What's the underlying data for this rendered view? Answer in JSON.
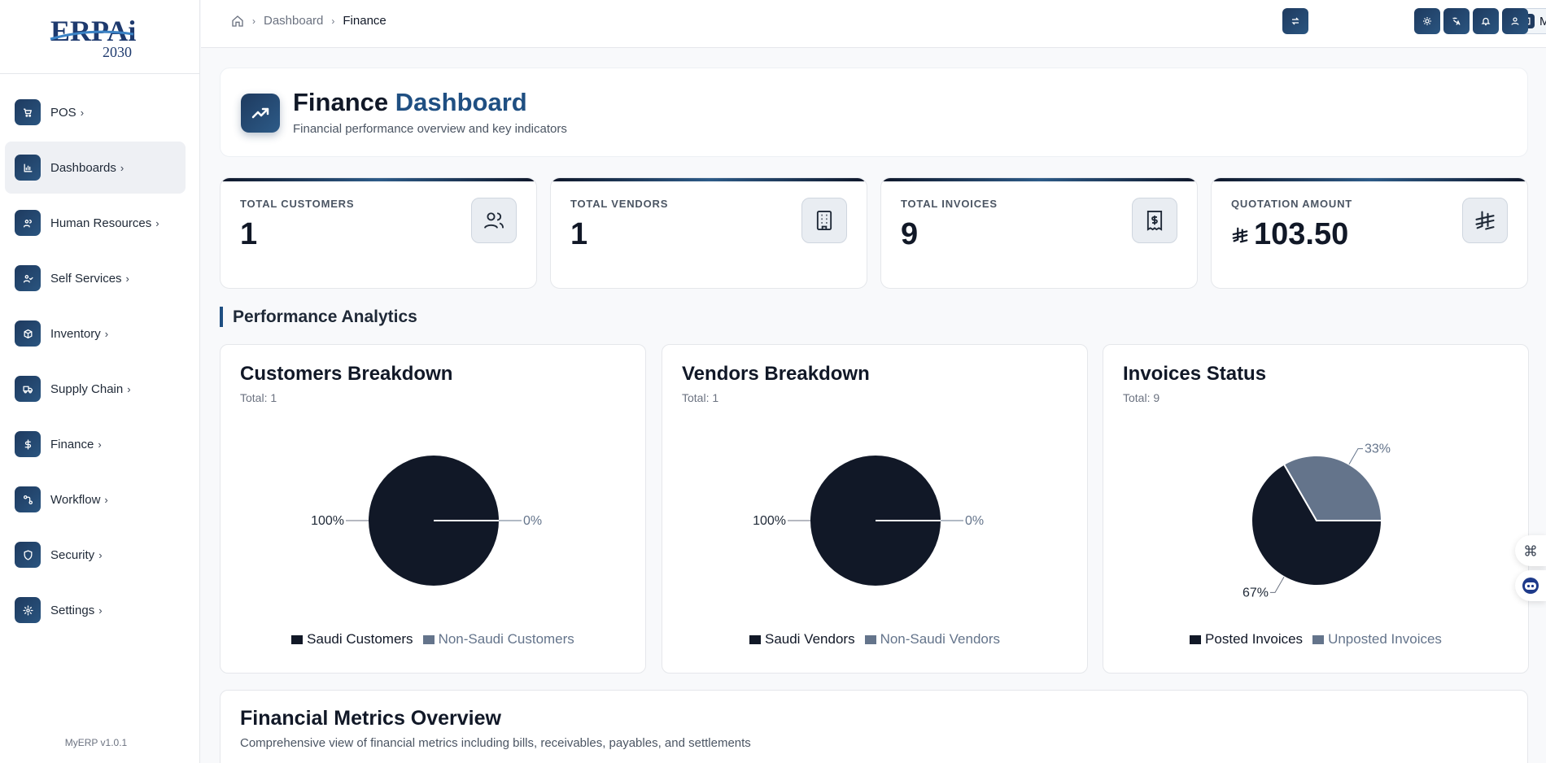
{
  "app": {
    "logo_text": "ERPAi",
    "logo_year": "2030",
    "version": "MyERP v1.0.1"
  },
  "sidebar": {
    "items": [
      {
        "label": "POS",
        "icon": "cart-icon"
      },
      {
        "label": "Dashboards",
        "icon": "bar-chart-icon",
        "active": true
      },
      {
        "label": "Human Resources",
        "icon": "users-icon"
      },
      {
        "label": "Self Services",
        "icon": "user-check-icon"
      },
      {
        "label": "Inventory",
        "icon": "box-icon"
      },
      {
        "label": "Supply Chain",
        "icon": "truck-icon"
      },
      {
        "label": "Finance",
        "icon": "dollar-icon"
      },
      {
        "label": "Workflow",
        "icon": "workflow-icon"
      },
      {
        "label": "Security",
        "icon": "shield-icon"
      },
      {
        "label": "Settings",
        "icon": "gear-icon"
      }
    ],
    "chevron": "›"
  },
  "topbar": {
    "breadcrumb": [
      "Dashboard",
      "Finance"
    ],
    "branch": "MainBranch",
    "buttons": [
      "switch-icon",
      "theme-icon",
      "translate-icon",
      "bell-icon",
      "user-icon"
    ]
  },
  "header": {
    "title_main": "Finance",
    "title_accent": "Dashboard",
    "subtitle": "Financial performance overview and key indicators"
  },
  "stats": [
    {
      "label": "TOTAL CUSTOMERS",
      "value": "1",
      "icon": "users-icon"
    },
    {
      "label": "TOTAL VENDORS",
      "value": "1",
      "icon": "building-icon"
    },
    {
      "label": "TOTAL INVOICES",
      "value": "9",
      "icon": "receipt-icon"
    },
    {
      "label": "QUOTATION AMOUNT",
      "value": "103.50",
      "currency": "riyal-icon",
      "icon": "riyal-icon"
    }
  ],
  "section": {
    "title": "Performance Analytics"
  },
  "colors": {
    "dark": "#111827",
    "slate": "#64748b",
    "accent": "#1f4f82"
  },
  "chart_data": [
    {
      "type": "pie",
      "title": "Customers Breakdown",
      "total_label": "Total: 1",
      "categories": [
        "Saudi Customers",
        "Non-Saudi Customers"
      ],
      "values": [
        1,
        0
      ],
      "labels": [
        "100%",
        "0%"
      ]
    },
    {
      "type": "pie",
      "title": "Vendors Breakdown",
      "total_label": "Total: 1",
      "categories": [
        "Saudi Vendors",
        "Non-Saudi Vendors"
      ],
      "values": [
        1,
        0
      ],
      "labels": [
        "100%",
        "0%"
      ]
    },
    {
      "type": "pie",
      "title": "Invoices Status",
      "total_label": "Total: 9",
      "categories": [
        "Posted Invoices",
        "Unposted Invoices"
      ],
      "values": [
        6,
        3
      ],
      "labels": [
        "67%",
        "33%"
      ]
    }
  ],
  "metrics": {
    "title": "Financial Metrics Overview",
    "subtitle": "Comprehensive view of financial metrics including bills, receivables, payables, and settlements"
  }
}
